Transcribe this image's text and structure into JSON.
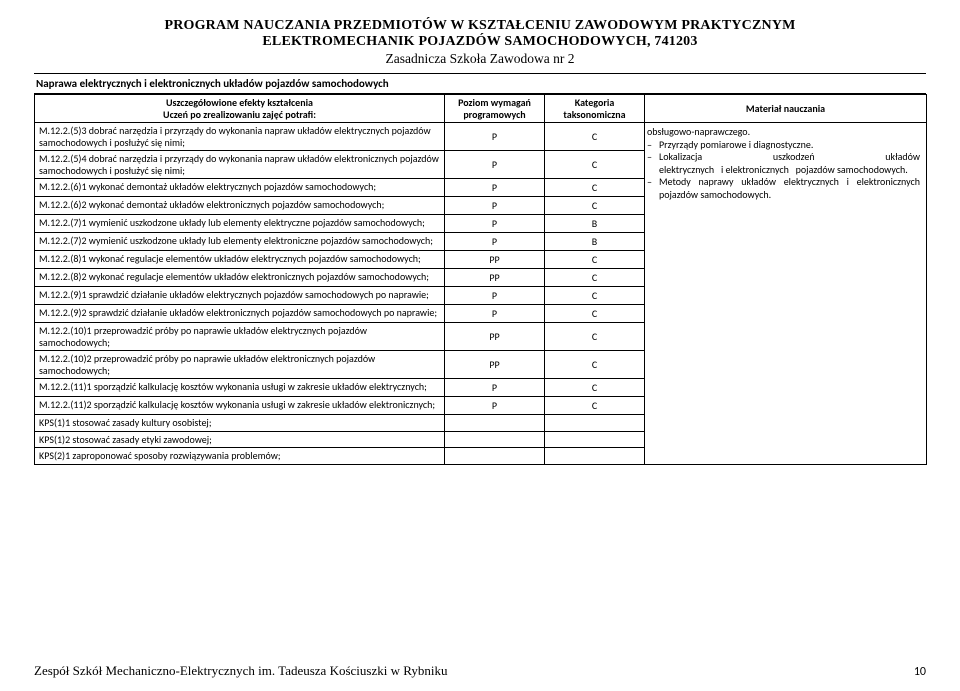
{
  "header": {
    "line1": "PROGRAM NAUCZANIA PRZEDMIOTÓW W KSZTAŁCENIU ZAWODOWYM PRAKTYCZNYM",
    "line2": "ELEKTROMECHANIK POJAZDÓW SAMOCHODOWYCH, 741203",
    "line3": "Zasadnicza Szkoła Zawodowa nr 2"
  },
  "section_title": "Naprawa elektrycznych i elektronicznych układów pojazdów samochodowych",
  "columns": {
    "col1_line1": "Uszczegółowione efekty kształcenia",
    "col1_line2": "Uczeń po zrealizowaniu zajęć potrafi:",
    "col2_line1": "Poziom wymagań",
    "col2_line2": "programowych",
    "col3_line1": "Kategoria",
    "col3_line2": "taksonomiczna",
    "col4": "Materiał nauczania"
  },
  "rows": [
    {
      "desc": "M.12.2.(5)3 dobrać narzędzia i przyrządy do wykonania napraw układów elektrycznych pojazdów samochodowych i posłużyć się nimi;",
      "p": "P",
      "k": "C"
    },
    {
      "desc": "M.12.2.(5)4 dobrać narzędzia i przyrządy do wykonania napraw układów elektronicznych pojazdów samochodowych i posłużyć się nimi;",
      "p": "P",
      "k": "C"
    },
    {
      "desc": "M.12.2.(6)1 wykonać demontaż układów elektrycznych pojazdów samochodowych;",
      "p": "P",
      "k": "C"
    },
    {
      "desc": "M.12.2.(6)2 wykonać demontaż układów elektronicznych pojazdów samochodowych;",
      "p": "P",
      "k": "C"
    },
    {
      "desc": "M.12.2.(7)1 wymienić uszkodzone układy lub elementy elektryczne pojazdów samochodowych;",
      "p": "P",
      "k": "B"
    },
    {
      "desc": "M.12.2.(7)2 wymienić uszkodzone układy lub elementy elektroniczne pojazdów samochodowych;",
      "p": "P",
      "k": "B"
    },
    {
      "desc": "M.12.2.(8)1 wykonać regulacje elementów układów elektrycznych pojazdów samochodowych;",
      "p": "PP",
      "k": "C"
    },
    {
      "desc": "M.12.2.(8)2 wykonać regulacje elementów układów elektronicznych pojazdów samochodowych;",
      "p": "PP",
      "k": "C"
    },
    {
      "desc": "M.12.2.(9)1 sprawdzić działanie układów elektrycznych pojazdów samochodowych po naprawie;",
      "p": "P",
      "k": "C"
    },
    {
      "desc": "M.12.2.(9)2 sprawdzić działanie układów elektronicznych pojazdów samochodowych po naprawie;",
      "p": "P",
      "k": "C"
    },
    {
      "desc": "M.12.2.(10)1 przeprowadzić próby po naprawie układów elektrycznych pojazdów samochodowych;",
      "p": "PP",
      "k": "C"
    },
    {
      "desc": "M.12.2.(10)2 przeprowadzić próby po naprawie układów elektronicznych pojazdów samochodowych;",
      "p": "PP",
      "k": "C"
    },
    {
      "desc": "M.12.2.(11)1 sporządzić kalkulację kosztów wykonania usługi w zakresie układów elektrycznych;",
      "p": "P",
      "k": "C"
    },
    {
      "desc": "M.12.2.(11)2 sporządzić kalkulację kosztów wykonania usługi w zakresie układów elektronicznych;",
      "p": "P",
      "k": "C"
    },
    {
      "desc": "KPS(1)1 stosować zasady kultury osobistej;",
      "p": "",
      "k": ""
    },
    {
      "desc": "KPS(1)2 stosować zasady etyki zawodowej;",
      "p": "",
      "k": ""
    },
    {
      "desc": "KPS(2)1 zaproponować sposoby rozwiązywania problemów;",
      "p": "",
      "k": ""
    }
  ],
  "materials": {
    "line0": "obsługowo-naprawczego.",
    "items": [
      "Przyrządy pomiarowe i diagnostyczne.",
      "Lokalizacja           uszkodzeń           układów elektrycznych   i elektronicznych   pojazdów samochodowych.",
      "Metody naprawy układów elektrycznych i elektronicznych pojazdów samochodowych."
    ]
  },
  "footer": {
    "left": "Zespół Szkół Mechaniczno-Elektrycznych  im. Tadeusza Kościuszki w Rybniku",
    "page": "10"
  }
}
